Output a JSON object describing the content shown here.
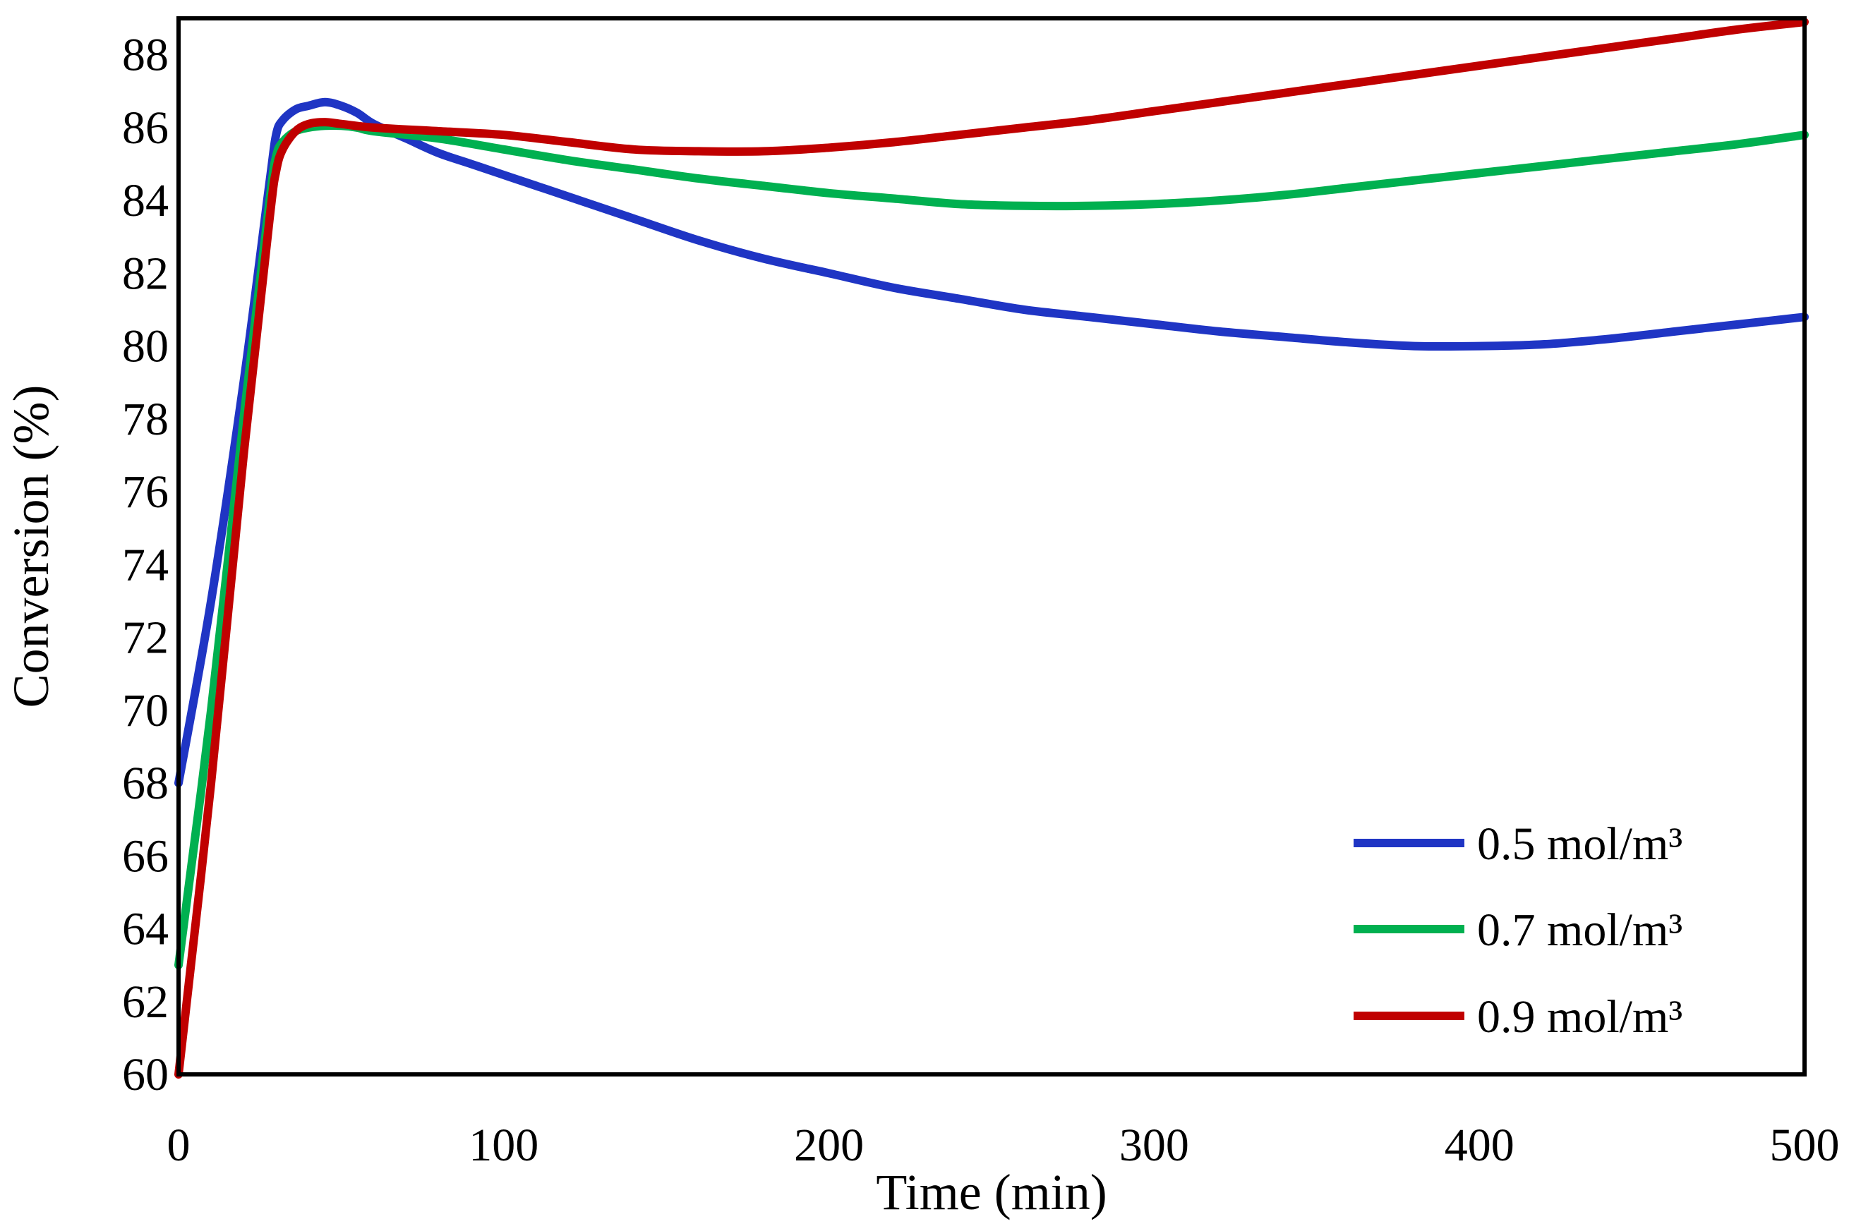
{
  "chart_data": {
    "type": "line",
    "title": "",
    "xlabel": "Time (min)",
    "ylabel": "Conversion (%)",
    "xlim": [
      0,
      500
    ],
    "ylim": [
      60,
      89
    ],
    "xticks": [
      0,
      100,
      200,
      300,
      400,
      500
    ],
    "xtick_labels": [
      "0",
      "100",
      "200",
      "300",
      "400",
      "500"
    ],
    "yticks": [
      60,
      62,
      64,
      66,
      68,
      70,
      72,
      74,
      76,
      78,
      80,
      82,
      84,
      86,
      88
    ],
    "ytick_labels": [
      "60",
      "62",
      "64",
      "66",
      "68",
      "70",
      "72",
      "74",
      "76",
      "78",
      "80",
      "82",
      "84",
      "86",
      "88"
    ],
    "grid": false,
    "legend_position": "bottom-right",
    "series": [
      {
        "name": "0.5 mol/m³",
        "color": "#1f35c4",
        "x": [
          0,
          10,
          20,
          28,
          30,
          32,
          36,
          40,
          45,
          50,
          55,
          60,
          70,
          80,
          90,
          100,
          120,
          140,
          160,
          180,
          200,
          220,
          240,
          260,
          280,
          300,
          320,
          340,
          360,
          380,
          400,
          420,
          440,
          460,
          480,
          500
        ],
        "y": [
          68.0,
          73.0,
          79.0,
          84.5,
          85.8,
          86.2,
          86.5,
          86.6,
          86.7,
          86.6,
          86.4,
          86.1,
          85.7,
          85.3,
          85.0,
          84.7,
          84.1,
          83.5,
          82.9,
          82.4,
          82.0,
          81.6,
          81.3,
          81.0,
          80.8,
          80.6,
          80.4,
          80.25,
          80.1,
          80.0,
          80.0,
          80.05,
          80.2,
          80.4,
          80.6,
          80.8
        ]
      },
      {
        "name": "0.7 mol/m³",
        "color": "#00b050",
        "x": [
          0,
          10,
          20,
          28,
          30,
          32,
          36,
          40,
          45,
          50,
          55,
          60,
          80,
          100,
          120,
          140,
          160,
          180,
          200,
          220,
          240,
          260,
          280,
          300,
          320,
          340,
          360,
          380,
          400,
          420,
          440,
          460,
          480,
          500
        ],
        "y": [
          63.0,
          70.0,
          78.0,
          84.0,
          85.2,
          85.6,
          85.9,
          86.0,
          86.05,
          86.05,
          86.0,
          85.9,
          85.7,
          85.4,
          85.1,
          84.85,
          84.6,
          84.4,
          84.2,
          84.05,
          83.9,
          83.85,
          83.85,
          83.9,
          84.0,
          84.15,
          84.35,
          84.55,
          84.75,
          84.95,
          85.15,
          85.35,
          85.55,
          85.8
        ]
      },
      {
        "name": "0.9 mol/m³",
        "color": "#c00000",
        "x": [
          0,
          10,
          20,
          28,
          30,
          32,
          36,
          40,
          45,
          50,
          60,
          80,
          100,
          120,
          140,
          160,
          180,
          200,
          220,
          240,
          260,
          280,
          300,
          320,
          340,
          360,
          380,
          400,
          420,
          440,
          460,
          480,
          500
        ],
        "y": [
          60.0,
          68.0,
          77.0,
          83.5,
          84.8,
          85.4,
          85.9,
          86.1,
          86.15,
          86.1,
          86.0,
          85.9,
          85.8,
          85.6,
          85.4,
          85.35,
          85.35,
          85.45,
          85.6,
          85.8,
          86.0,
          86.2,
          86.45,
          86.7,
          86.95,
          87.2,
          87.45,
          87.7,
          87.95,
          88.2,
          88.45,
          88.7,
          88.9
        ]
      }
    ]
  }
}
